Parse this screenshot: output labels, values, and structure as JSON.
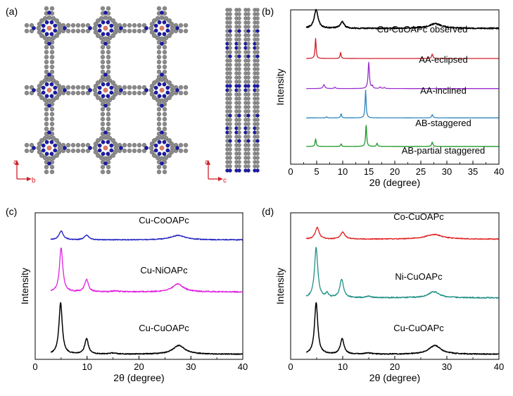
{
  "panels": {
    "a": {
      "label": "(a)",
      "axes_left": {
        "vertical": "a",
        "horizontal": "b"
      },
      "axes_right": {
        "vertical": "a",
        "horizontal": "c"
      }
    },
    "b": {
      "label": "(b)"
    },
    "c": {
      "label": "(c)"
    },
    "d": {
      "label": "(d)"
    }
  },
  "colors": {
    "black": "#000000",
    "red": "#d0202a",
    "purple": "#9b2fd0",
    "blue_b": "#2e86c1",
    "green": "#1f9a2a",
    "navy": "#2020c0",
    "magenta": "#e020e0",
    "red_d": "#e02020",
    "teal": "#1f8f86",
    "atom_c": "#8a8a8a",
    "atom_n": "#1a1aa8",
    "atom_cu": "#e07a5f"
  },
  "chart_data": [
    {
      "id": "b",
      "type": "line",
      "xlabel": "2θ (degree)",
      "ylabel": "Intensity",
      "xlim": [
        0,
        40
      ],
      "xticks": [
        0,
        5,
        10,
        15,
        20,
        25,
        30,
        35,
        40
      ],
      "x_range": [
        3,
        40
      ],
      "series": [
        {
          "name": "Cu-CuOAPc observed",
          "color": "#000000",
          "baseline": 0.88,
          "scale": 0.12,
          "width": 1.6,
          "noise": 0.004,
          "peaks": [
            [
              4.9,
              1.0,
              0.45
            ],
            [
              9.9,
              0.35,
              0.45
            ],
            [
              27.8,
              0.25,
              1.5
            ]
          ]
        },
        {
          "name": "AA-eclipsed",
          "color": "#d0202a",
          "baseline": 0.685,
          "scale": 0.13,
          "width": 1.3,
          "noise": 0,
          "peaks": [
            [
              4.8,
              1.0,
              0.12
            ],
            [
              9.6,
              0.3,
              0.12
            ],
            [
              27.2,
              0.22,
              0.15
            ]
          ]
        },
        {
          "name": "AA-inclined",
          "color": "#9b2fd0",
          "baseline": 0.49,
          "scale": 0.17,
          "width": 1.3,
          "noise": 0,
          "peaks": [
            [
              6.4,
              0.15,
              0.2
            ],
            [
              8.5,
              0.05,
              0.15
            ],
            [
              15.0,
              1.0,
              0.15
            ],
            [
              15.7,
              0.1,
              0.12
            ],
            [
              17.2,
              0.06,
              0.15
            ],
            [
              18.0,
              0.04,
              0.15
            ]
          ]
        },
        {
          "name": "AB-staggered",
          "color": "#2e86c1",
          "baseline": 0.3,
          "scale": 0.18,
          "width": 1.3,
          "noise": 0,
          "peaks": [
            [
              6.9,
              0.04,
              0.12
            ],
            [
              9.7,
              0.15,
              0.12
            ],
            [
              14.4,
              1.0,
              0.12
            ],
            [
              27.2,
              0.12,
              0.15
            ]
          ]
        },
        {
          "name": "AB-partial staggered",
          "color": "#1f9a2a",
          "baseline": 0.115,
          "scale": 0.14,
          "width": 1.3,
          "noise": 0,
          "peaks": [
            [
              4.8,
              0.35,
              0.12
            ],
            [
              9.7,
              0.12,
              0.12
            ],
            [
              14.5,
              1.0,
              0.12
            ],
            [
              16.6,
              0.15,
              0.12
            ],
            [
              27.2,
              0.2,
              0.15
            ]
          ]
        }
      ]
    },
    {
      "id": "c",
      "type": "line",
      "xlabel": "2θ (degree)",
      "ylabel": "Intensity",
      "xlim": [
        0,
        40
      ],
      "xticks": [
        0,
        10,
        20,
        30,
        40
      ],
      "x_range": [
        3,
        40
      ],
      "series": [
        {
          "name": "Cu-CoOAPc",
          "color": "#2020c0",
          "baseline": 0.815,
          "scale": 0.06,
          "width": 1.3,
          "noise": 0.003,
          "peaks": [
            [
              5.0,
              1.0,
              0.5
            ],
            [
              9.9,
              0.55,
              0.5
            ],
            [
              27.5,
              0.5,
              1.8
            ]
          ]
        },
        {
          "name": "Cu-NiOAPc",
          "color": "#e020e0",
          "baseline": 0.46,
          "scale": 0.3,
          "width": 1.3,
          "noise": 0.004,
          "peaks": [
            [
              5.0,
              1.0,
              0.38
            ],
            [
              9.9,
              0.28,
              0.42
            ],
            [
              15.5,
              0.02,
              0.8
            ],
            [
              27.5,
              0.18,
              1.3
            ]
          ]
        },
        {
          "name": "Cu-CuOAPc",
          "color": "#000000",
          "baseline": 0.035,
          "scale": 0.35,
          "width": 1.5,
          "noise": 0.003,
          "peaks": [
            [
              4.9,
              1.0,
              0.38
            ],
            [
              9.9,
              0.3,
              0.42
            ],
            [
              15.0,
              0.02,
              0.8
            ],
            [
              27.7,
              0.17,
              1.4
            ]
          ]
        }
      ]
    },
    {
      "id": "d",
      "type": "line",
      "xlabel": "2θ (degree)",
      "ylabel": "Intensity",
      "xlim": [
        0,
        40
      ],
      "xticks": [
        0,
        10,
        20,
        30,
        40
      ],
      "x_range": [
        3,
        40
      ],
      "series": [
        {
          "name": "Co-CuOAPc",
          "color": "#e02020",
          "baseline": 0.82,
          "scale": 0.08,
          "width": 1.3,
          "noise": 0.003,
          "peaks": [
            [
              5.1,
              1.0,
              0.45
            ],
            [
              10.0,
              0.6,
              0.5
            ],
            [
              27.5,
              0.4,
              2.0
            ]
          ]
        },
        {
          "name": "Ni-CuOAPc",
          "color": "#1f8f86",
          "baseline": 0.42,
          "scale": 0.34,
          "width": 1.3,
          "noise": 0.004,
          "peaks": [
            [
              4.9,
              1.0,
              0.38
            ],
            [
              7.0,
              0.08,
              0.3
            ],
            [
              9.8,
              0.37,
              0.42
            ],
            [
              15.0,
              0.03,
              0.6
            ],
            [
              27.5,
              0.12,
              1.3
            ]
          ]
        },
        {
          "name": "Cu-CuOAPc",
          "color": "#000000",
          "baseline": 0.035,
          "scale": 0.35,
          "width": 1.5,
          "noise": 0.003,
          "peaks": [
            [
              4.9,
              1.0,
              0.38
            ],
            [
              9.9,
              0.3,
              0.42
            ],
            [
              15.0,
              0.02,
              0.8
            ],
            [
              27.7,
              0.17,
              1.4
            ]
          ]
        }
      ]
    }
  ]
}
